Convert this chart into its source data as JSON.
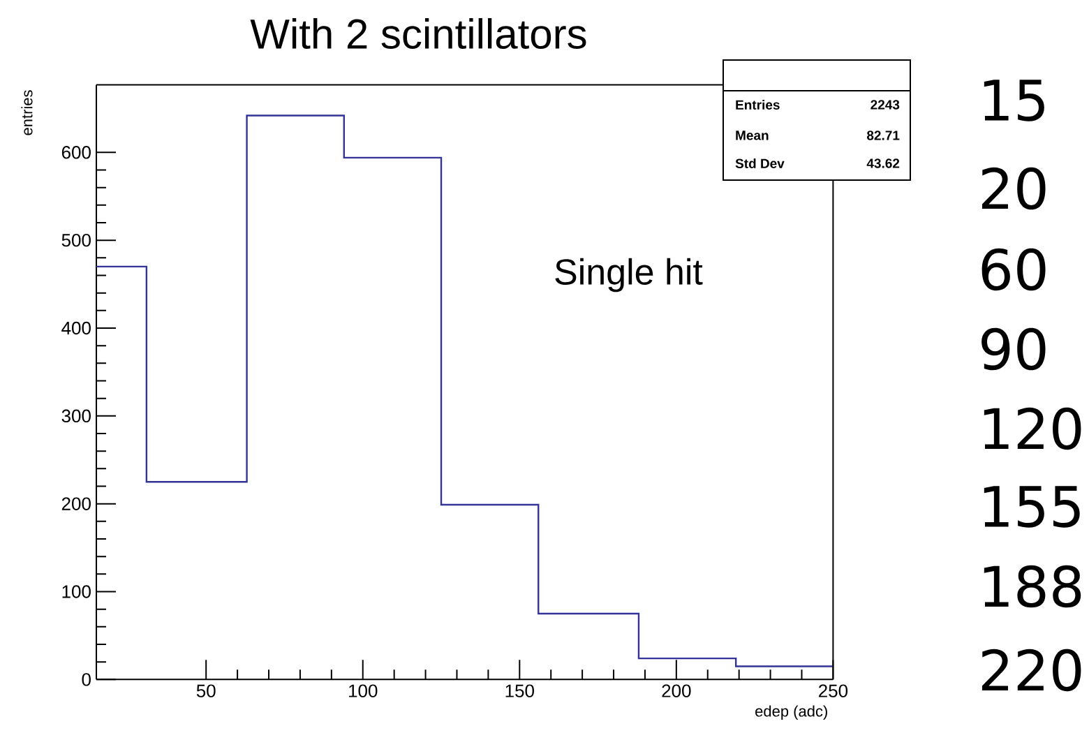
{
  "chart_data": {
    "type": "histogram",
    "title": "With 2 scintillators",
    "xlabel": "edep (adc)",
    "ylabel": "entries",
    "bins": [
      15,
      31,
      63,
      94,
      125,
      156,
      188,
      219,
      250
    ],
    "values": [
      470,
      225,
      642,
      594,
      199,
      75,
      24,
      15
    ],
    "color": "#333399",
    "xlim": [
      15,
      250
    ],
    "ylim": [
      0,
      677
    ],
    "xticks": [
      50,
      100,
      150,
      200,
      250
    ],
    "yticks": [
      0,
      100,
      200,
      300,
      400,
      500,
      600
    ],
    "annotations": [
      "Single hit",
      "Entries",
      "2243",
      "Mean",
      "82.71",
      "Std Dev",
      "43.62",
      "15",
      "20",
      "60",
      "90",
      "120",
      "155",
      "188",
      "220"
    ]
  }
}
